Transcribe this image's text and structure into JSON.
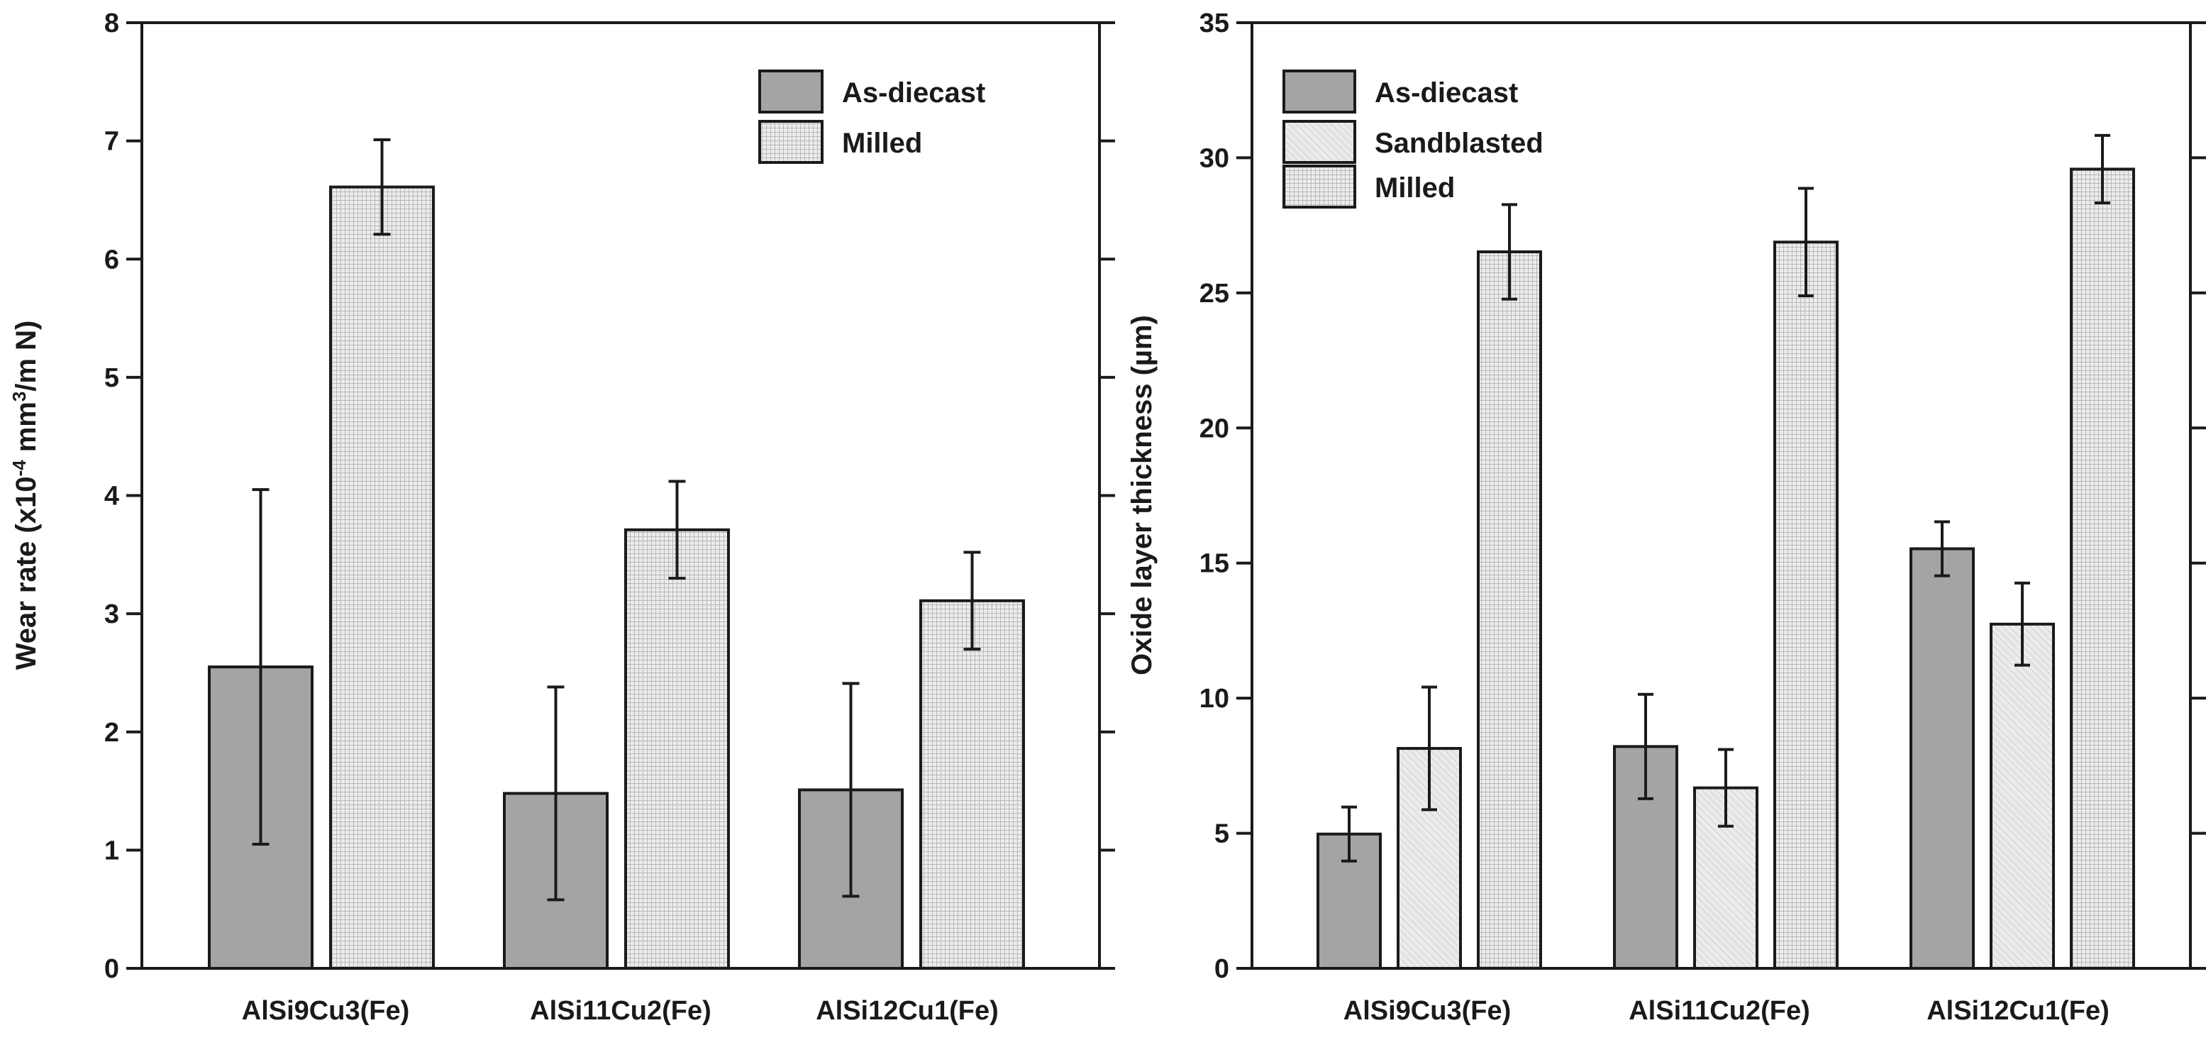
{
  "chart_data": [
    {
      "type": "bar",
      "title": "",
      "xlabel": "",
      "ylabel_parts": [
        "Wear rate (x10",
        "-4",
        " mm",
        "3",
        "/m N)"
      ],
      "ylim": [
        0,
        8
      ],
      "yticks": [
        0,
        1,
        2,
        3,
        4,
        5,
        6,
        7,
        8
      ],
      "categories": [
        "AlSi9Cu3(Fe)",
        "AlSi11Cu2(Fe)",
        "AlSi12Cu1(Fe)"
      ],
      "legend_position": "top-right",
      "series": [
        {
          "name": "As-diecast",
          "style": "dark",
          "values": [
            2.55,
            1.48,
            1.51
          ],
          "error": [
            1.5,
            0.9,
            0.9
          ]
        },
        {
          "name": "Milled",
          "style": "milled",
          "values": [
            6.61,
            3.71,
            3.11
          ],
          "error": [
            0.4,
            0.41,
            0.41
          ]
        }
      ]
    },
    {
      "type": "bar",
      "title": "",
      "xlabel": "",
      "ylabel": "Oxide layer thickness (µm)",
      "ylim": [
        0,
        35
      ],
      "yticks": [
        0,
        5,
        10,
        15,
        20,
        25,
        30,
        35
      ],
      "categories": [
        "AlSi9Cu3(Fe)",
        "AlSi11Cu2(Fe)",
        "AlSi12Cu1(Fe)"
      ],
      "legend_position": "top-left",
      "series": [
        {
          "name": "As-diecast",
          "style": "dark",
          "values": [
            4.97,
            8.21,
            15.53
          ],
          "error": [
            1.0,
            1.93,
            1.0
          ]
        },
        {
          "name": "Sandblasted",
          "style": "sand",
          "values": [
            8.14,
            6.68,
            12.74
          ],
          "error": [
            2.27,
            1.42,
            1.52
          ]
        },
        {
          "name": "Milled",
          "style": "milled",
          "values": [
            26.52,
            26.88,
            29.58
          ],
          "error": [
            1.75,
            1.99,
            1.25
          ]
        }
      ]
    }
  ],
  "colors": {
    "dark": "#a4a4a4",
    "sand": "#e6e6e6",
    "milled": "#e2e2e2",
    "axis": "#1a1a1a"
  }
}
